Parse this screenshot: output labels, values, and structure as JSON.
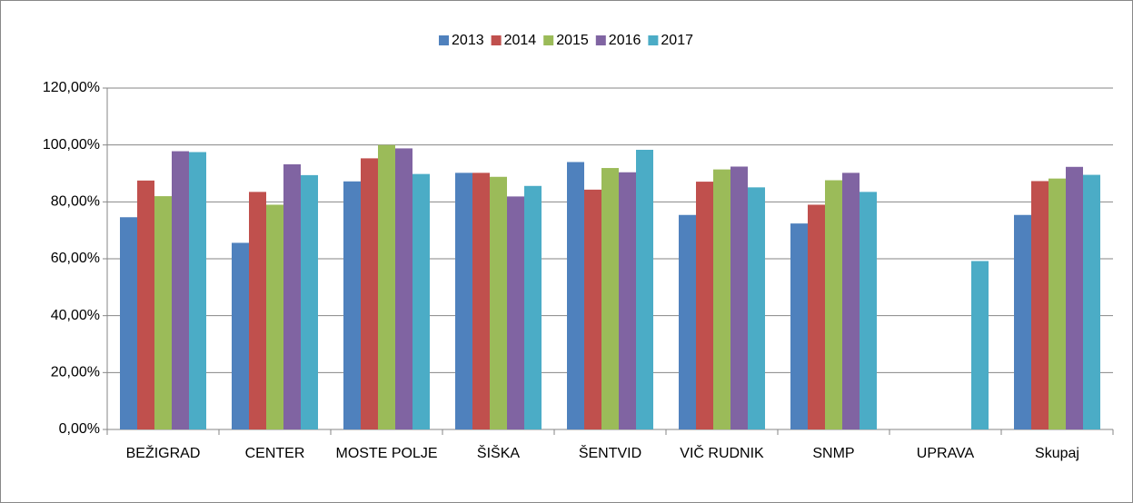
{
  "chart_data": {
    "type": "bar",
    "categories": [
      "BEŽIGRAD",
      "CENTER",
      "MOSTE POLJE",
      "ŠIŠKA",
      "ŠENTVID",
      "VIČ RUDNIK",
      "SNMP",
      "UPRAVA",
      "Skupaj"
    ],
    "series": [
      {
        "name": "2013",
        "color": "#4f81bd",
        "values": [
          74.6,
          65.6,
          87.2,
          90.2,
          94.0,
          75.4,
          72.4,
          null,
          75.4
        ]
      },
      {
        "name": "2014",
        "color": "#c0504d",
        "values": [
          87.5,
          83.5,
          95.3,
          90.2,
          84.3,
          87.1,
          79.0,
          null,
          87.3
        ]
      },
      {
        "name": "2015",
        "color": "#9bbb59",
        "values": [
          82.0,
          79.0,
          100.0,
          88.8,
          91.9,
          91.4,
          87.6,
          null,
          88.2
        ]
      },
      {
        "name": "2016",
        "color": "#8064a2",
        "values": [
          97.8,
          93.2,
          98.8,
          81.9,
          90.4,
          92.4,
          90.2,
          null,
          92.3
        ]
      },
      {
        "name": "2017",
        "color": "#4bacc6",
        "values": [
          97.5,
          89.4,
          89.8,
          85.6,
          98.3,
          85.1,
          83.5,
          59.2,
          89.5
        ]
      }
    ],
    "ylim": [
      0,
      120
    ],
    "yticks": [
      {
        "value": 0,
        "label": "0,00%"
      },
      {
        "value": 20,
        "label": "20,00%"
      },
      {
        "value": 40,
        "label": "40,00%"
      },
      {
        "value": 60,
        "label": "60,00%"
      },
      {
        "value": 80,
        "label": "80,00%"
      },
      {
        "value": 100,
        "label": "100,00%"
      },
      {
        "value": 120,
        "label": "120,00%"
      }
    ],
    "grid": true,
    "legend": "top"
  }
}
